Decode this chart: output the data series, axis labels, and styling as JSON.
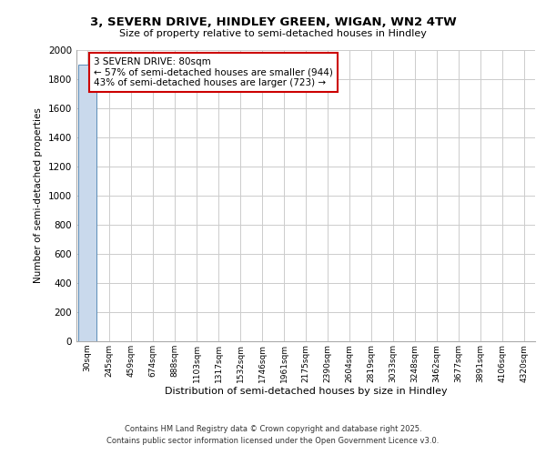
{
  "title_line1": "3, SEVERN DRIVE, HINDLEY GREEN, WIGAN, WN2 4TW",
  "title_line2": "Size of property relative to semi-detached houses in Hindley",
  "xlabel": "Distribution of semi-detached houses by size in Hindley",
  "ylabel": "Number of semi-detached properties",
  "categories": [
    "30sqm",
    "245sqm",
    "459sqm",
    "674sqm",
    "888sqm",
    "1103sqm",
    "1317sqm",
    "1532sqm",
    "1746sqm",
    "1961sqm",
    "2175sqm",
    "2390sqm",
    "2604sqm",
    "2819sqm",
    "3033sqm",
    "3248sqm",
    "3462sqm",
    "3677sqm",
    "3891sqm",
    "4106sqm",
    "4320sqm"
  ],
  "values": [
    1900,
    2,
    1,
    1,
    0,
    0,
    0,
    0,
    0,
    0,
    0,
    0,
    0,
    0,
    0,
    0,
    0,
    0,
    0,
    0,
    0
  ],
  "bar_color": "#c9d9ec",
  "bar_edge_color": "#5b8db8",
  "annotation_text": "3 SEVERN DRIVE: 80sqm\n← 57% of semi-detached houses are smaller (944)\n43% of semi-detached houses are larger (723) →",
  "annotation_box_color": "#ffffff",
  "annotation_box_edge_color": "#cc0000",
  "ylim": [
    0,
    2000
  ],
  "yticks": [
    0,
    200,
    400,
    600,
    800,
    1000,
    1200,
    1400,
    1600,
    1800,
    2000
  ],
  "background_color": "#ffffff",
  "grid_color": "#cccccc",
  "footer_line1": "Contains HM Land Registry data © Crown copyright and database right 2025.",
  "footer_line2": "Contains public sector information licensed under the Open Government Licence v3.0."
}
